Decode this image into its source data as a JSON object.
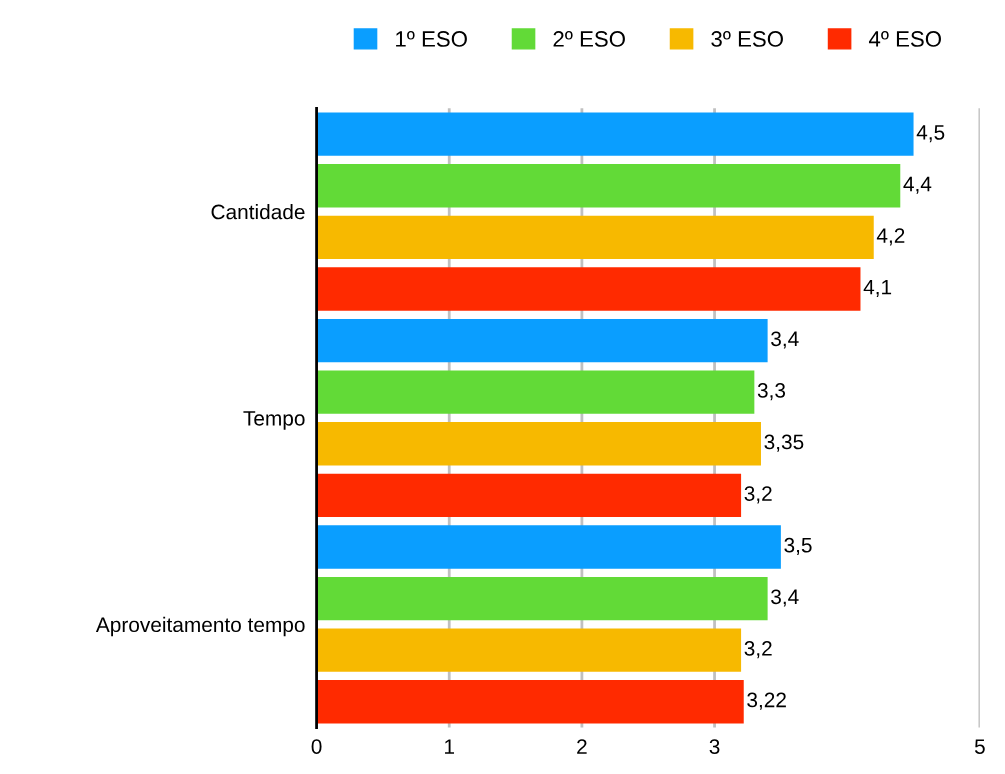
{
  "chart_data": {
    "type": "bar",
    "orientation": "horizontal",
    "categories": [
      "Cantidade",
      "Tempo",
      "Aproveitamento tempo"
    ],
    "series": [
      {
        "name": "1º ESO",
        "color": "#0a9eff",
        "values": [
          4.5,
          3.4,
          3.5
        ],
        "value_labels": [
          "4,5",
          "3,4",
          "3,5"
        ]
      },
      {
        "name": "2º ESO",
        "color": "#62da37",
        "values": [
          4.4,
          3.3,
          3.4
        ],
        "value_labels": [
          "4,4",
          "3,3",
          "3,4"
        ]
      },
      {
        "name": "3º ESO",
        "color": "#f7b900",
        "values": [
          4.2,
          3.35,
          3.2
        ],
        "value_labels": [
          "4,2",
          "3,35",
          "3,2"
        ]
      },
      {
        "name": "4º ESO",
        "color": "#ff2a00",
        "values": [
          4.1,
          3.2,
          3.22
        ],
        "value_labels": [
          "4,1",
          "3,2",
          "3,22"
        ]
      }
    ],
    "xlim": [
      0,
      5
    ],
    "xticks": [
      0,
      1,
      2,
      3,
      5
    ],
    "grid": "x",
    "legend": "top"
  }
}
